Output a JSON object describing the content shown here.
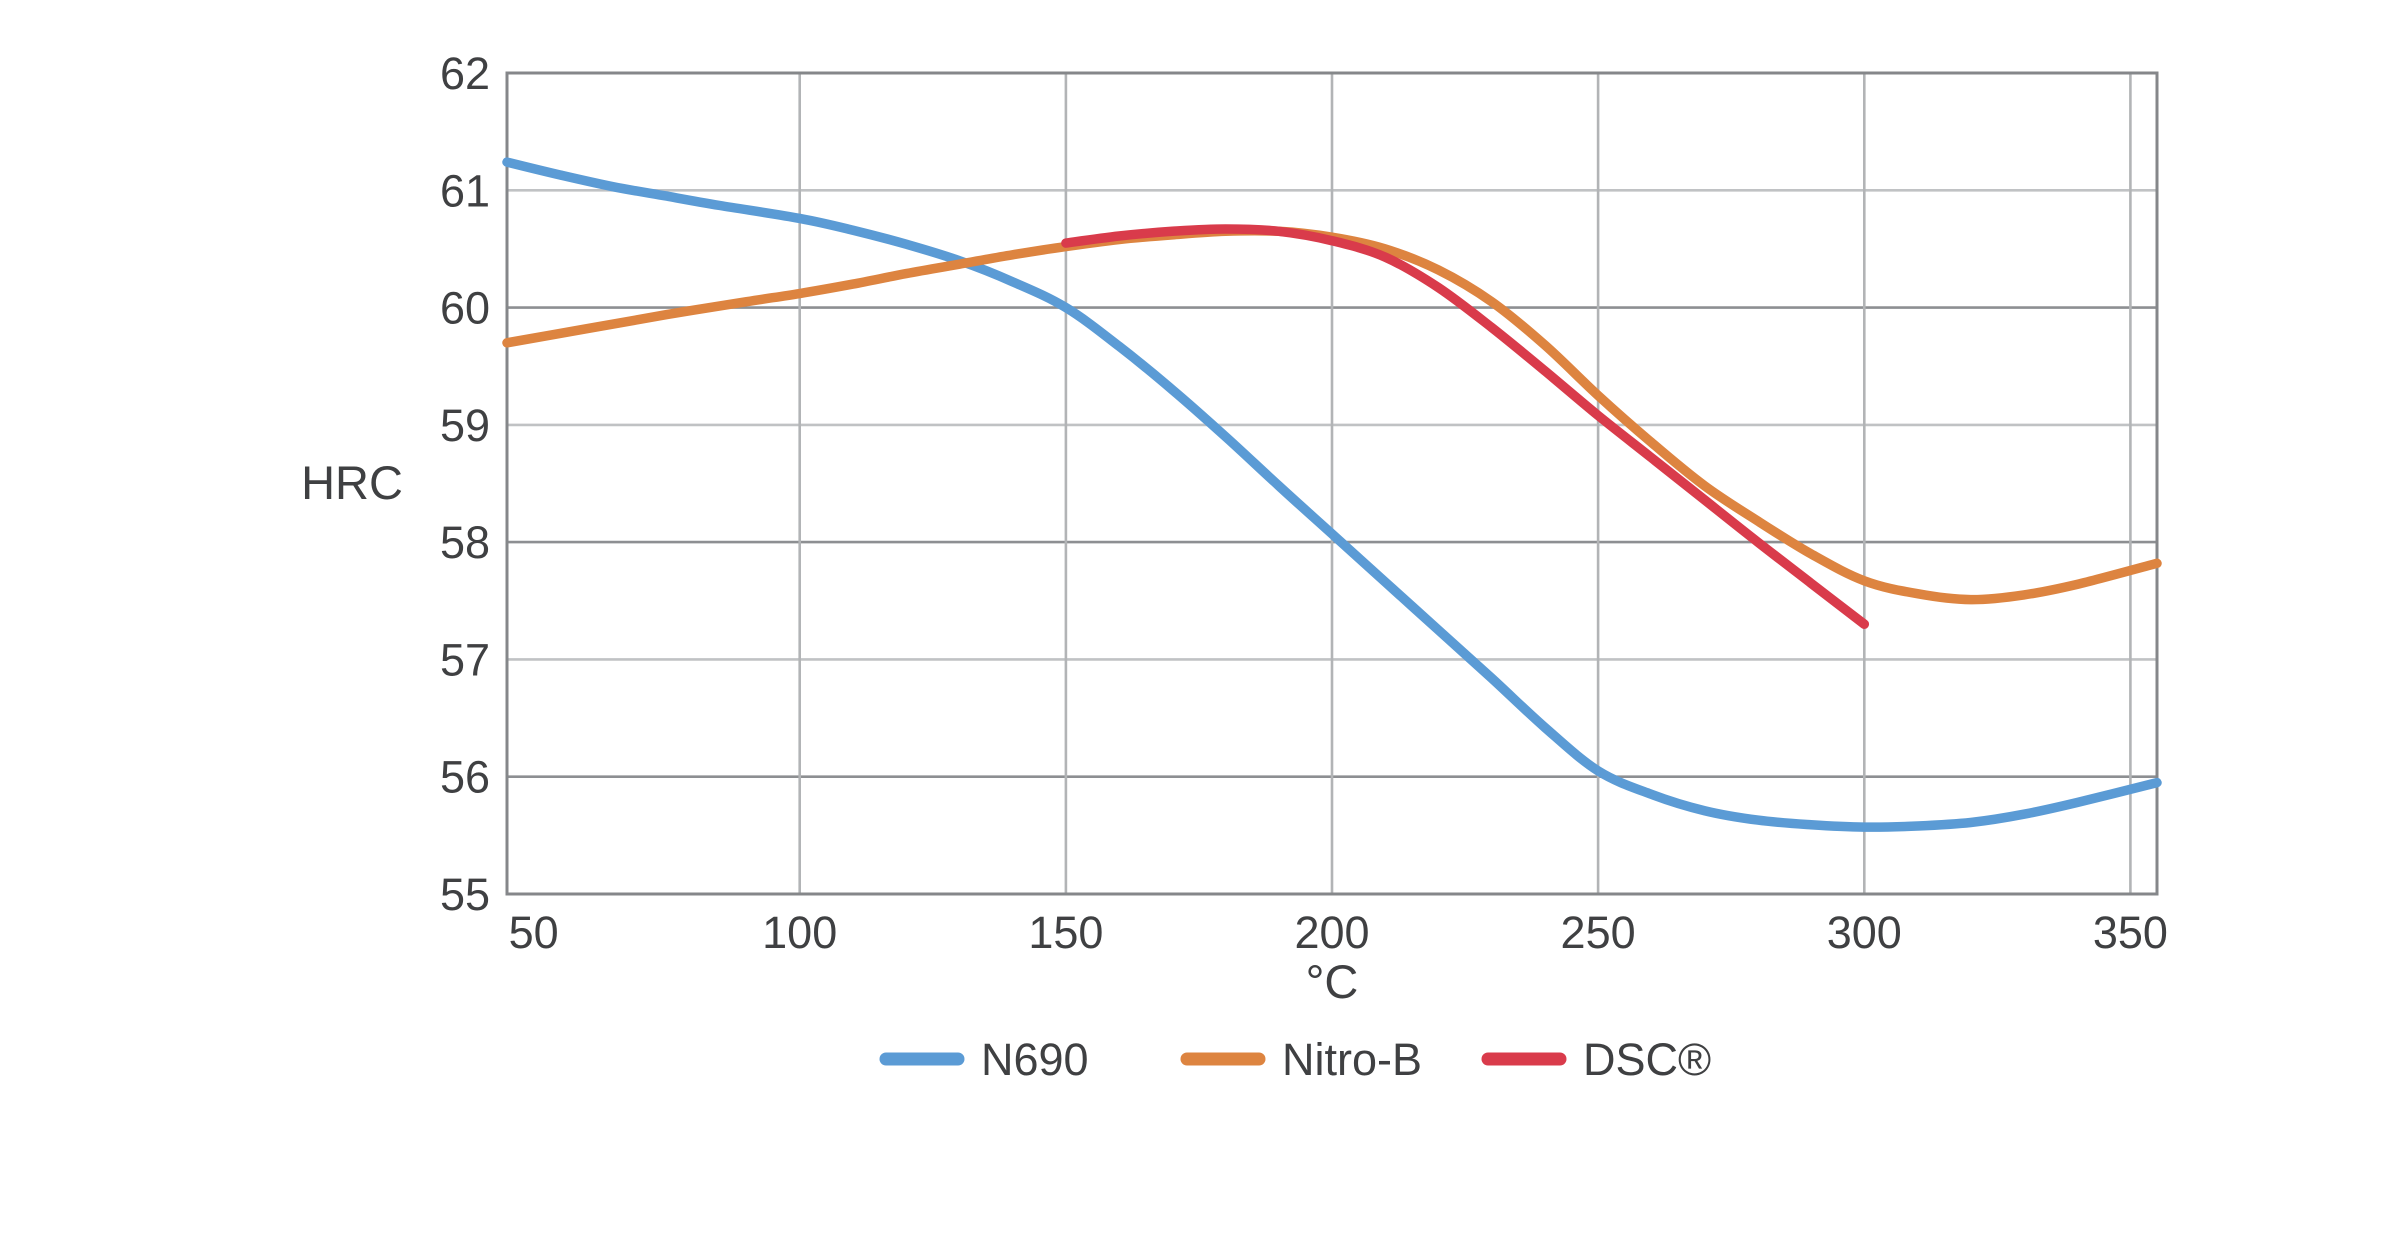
{
  "figure": {
    "background": "#ffffff"
  },
  "chart_data": {
    "type": "line",
    "title": "",
    "xlabel": "°C",
    "ylabel": "HRC",
    "xlim": [
      45,
      355
    ],
    "ylim": [
      55,
      62
    ],
    "x_ticks": [
      50,
      100,
      150,
      200,
      250,
      300,
      350
    ],
    "y_ticks": [
      55,
      56,
      57,
      58,
      59,
      60,
      61,
      62
    ],
    "grid": true,
    "legend_position": "bottom-center",
    "legend": [
      "N690",
      "Nitro-B",
      "DSC®"
    ],
    "series": [
      {
        "name": "N690",
        "color": "#5b9bd5",
        "points": [
          [
            45,
            61.24
          ],
          [
            55,
            61.13
          ],
          [
            65,
            61.03
          ],
          [
            75,
            60.95
          ],
          [
            85,
            60.87
          ],
          [
            100,
            60.76
          ],
          [
            110,
            60.66
          ],
          [
            120,
            60.54
          ],
          [
            130,
            60.4
          ],
          [
            140,
            60.22
          ],
          [
            150,
            60.0
          ],
          [
            160,
            59.67
          ],
          [
            170,
            59.3
          ],
          [
            180,
            58.9
          ],
          [
            190,
            58.48
          ],
          [
            200,
            58.07
          ],
          [
            210,
            57.66
          ],
          [
            220,
            57.25
          ],
          [
            230,
            56.84
          ],
          [
            240,
            56.42
          ],
          [
            250,
            56.05
          ],
          [
            260,
            55.85
          ],
          [
            270,
            55.71
          ],
          [
            280,
            55.63
          ],
          [
            290,
            55.59
          ],
          [
            300,
            55.57
          ],
          [
            310,
            55.58
          ],
          [
            320,
            55.61
          ],
          [
            330,
            55.68
          ],
          [
            340,
            55.78
          ],
          [
            355,
            55.95
          ]
        ]
      },
      {
        "name": "Nitro-B",
        "color": "#dd8440",
        "points": [
          [
            45,
            59.7
          ],
          [
            60,
            59.82
          ],
          [
            75,
            59.94
          ],
          [
            90,
            60.05
          ],
          [
            100,
            60.12
          ],
          [
            110,
            60.2
          ],
          [
            120,
            60.29
          ],
          [
            130,
            60.37
          ],
          [
            140,
            60.45
          ],
          [
            150,
            60.52
          ],
          [
            160,
            60.58
          ],
          [
            170,
            60.62
          ],
          [
            180,
            60.65
          ],
          [
            190,
            60.65
          ],
          [
            200,
            60.6
          ],
          [
            210,
            60.5
          ],
          [
            220,
            60.32
          ],
          [
            230,
            60.05
          ],
          [
            240,
            59.68
          ],
          [
            250,
            59.25
          ],
          [
            260,
            58.85
          ],
          [
            270,
            58.48
          ],
          [
            280,
            58.18
          ],
          [
            290,
            57.9
          ],
          [
            300,
            57.67
          ],
          [
            310,
            57.56
          ],
          [
            320,
            57.51
          ],
          [
            330,
            57.55
          ],
          [
            340,
            57.64
          ],
          [
            355,
            57.82
          ]
        ]
      },
      {
        "name": "DSC®",
        "color": "#d93b4b",
        "points": [
          [
            150,
            60.55
          ],
          [
            160,
            60.61
          ],
          [
            170,
            60.65
          ],
          [
            180,
            60.67
          ],
          [
            190,
            60.65
          ],
          [
            200,
            60.57
          ],
          [
            210,
            60.43
          ],
          [
            220,
            60.17
          ],
          [
            230,
            59.83
          ],
          [
            240,
            59.46
          ],
          [
            250,
            59.08
          ],
          [
            260,
            58.72
          ],
          [
            270,
            58.36
          ],
          [
            280,
            58.0
          ],
          [
            290,
            57.65
          ],
          [
            300,
            57.3
          ]
        ]
      }
    ]
  },
  "style": {
    "text_color": "#3f4042",
    "grid_light": "#c0c2c4",
    "grid_dark": "#8d8f92",
    "border_color": "#85878a",
    "background": "#ffffff"
  }
}
